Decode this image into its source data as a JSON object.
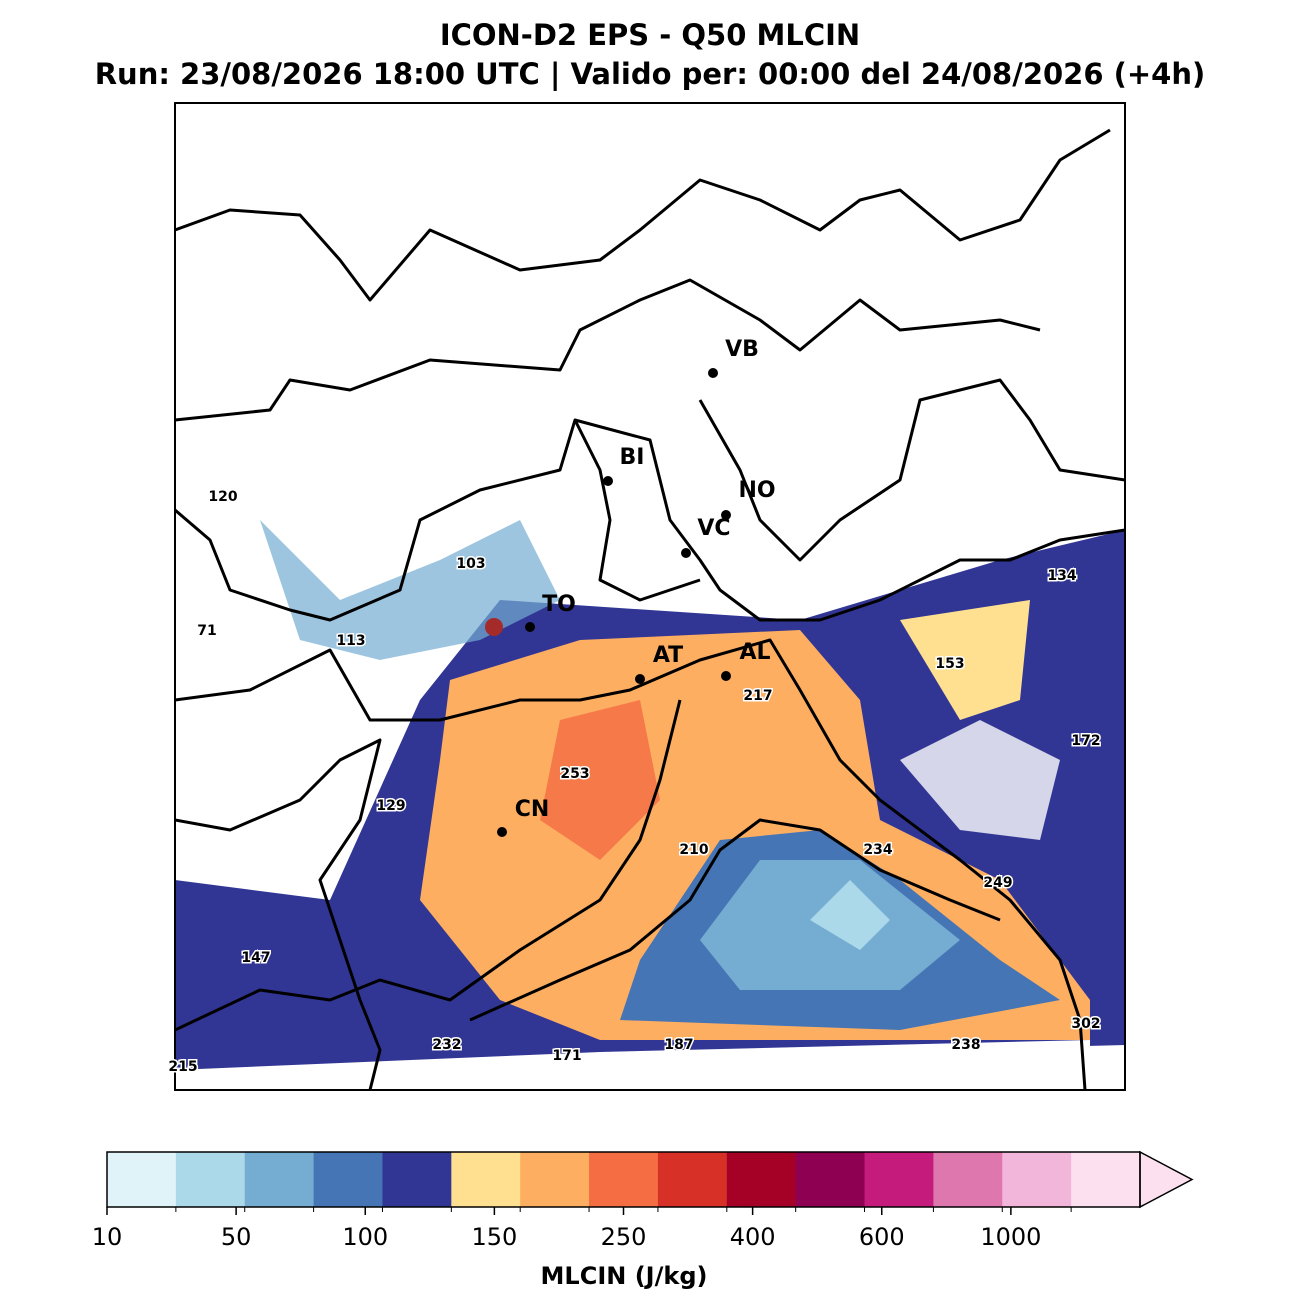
{
  "header": {
    "title": "ICON-D2 EPS - Q50 MLCIN",
    "subtitle": "Run: 23/08/2026 18:00 UTC | Valido per: 00:00 del 24/08/2026 (+4h)"
  },
  "map": {
    "cities": [
      "VB",
      "BI",
      "NO",
      "VC",
      "TO",
      "AT",
      "AL",
      "CN"
    ],
    "value_labels": [
      "120",
      "103",
      "71",
      "113",
      "129",
      "147",
      "215",
      "232",
      "171",
      "187",
      "238",
      "302",
      "249",
      "234",
      "210",
      "253",
      "217",
      "153",
      "172",
      "134"
    ]
  },
  "colorbar": {
    "label": "MLCIN (J/kg)",
    "ticks": [
      10,
      50,
      100,
      150,
      250,
      400,
      600,
      1000
    ],
    "colors": [
      "#e0f3f8",
      "#abd9e9",
      "#74add1",
      "#4575b4",
      "#313695",
      "#fee090",
      "#fdae61",
      "#f46d43",
      "#d73027",
      "#a50026",
      "#8e0152",
      "#c51b7d",
      "#de77ae",
      "#f1b6da",
      "#fde0ef"
    ],
    "extend": "max"
  }
}
